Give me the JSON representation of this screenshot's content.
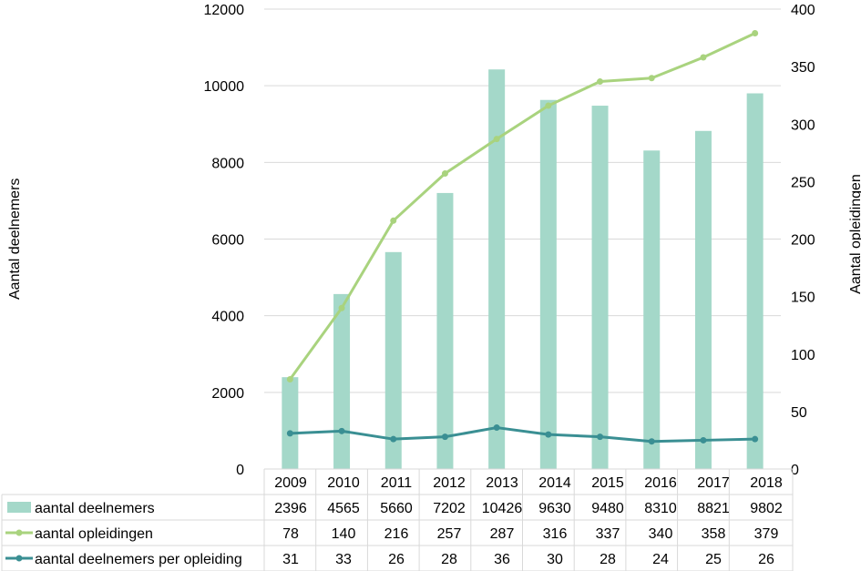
{
  "chart_data": {
    "type": "bar",
    "categories": [
      "2009",
      "2010",
      "2011",
      "2012",
      "2013",
      "2014",
      "2015",
      "2016",
      "2017",
      "2018"
    ],
    "series": [
      {
        "name": "aantal deelnemers",
        "type": "bar",
        "axis": "left",
        "color": "#a4d8c9",
        "values": [
          2396,
          4565,
          5660,
          7202,
          10426,
          9630,
          9480,
          8310,
          8821,
          9802
        ]
      },
      {
        "name": "aantal opleidingen",
        "type": "line",
        "axis": "right",
        "color": "#a9d37e",
        "values": [
          78,
          140,
          216,
          257,
          287,
          316,
          337,
          340,
          358,
          379
        ]
      },
      {
        "name": "aantal deelnemers per opleiding",
        "type": "line",
        "axis": "right",
        "color": "#3a8f93",
        "values": [
          31,
          33,
          26,
          28,
          36,
          30,
          28,
          24,
          25,
          26
        ]
      }
    ],
    "ylabel_left": "Aantal  deelnemers",
    "ylabel_right": "Aantal opleidingen",
    "ylim_left": [
      0,
      12000
    ],
    "ylim_right": [
      0,
      400
    ],
    "yticks_left": [
      "0",
      "2000",
      "4000",
      "6000",
      "8000",
      "10000",
      "12000"
    ],
    "yticks_right": [
      "0",
      "50",
      "100",
      "150",
      "200",
      "250",
      "300",
      "350",
      "400"
    ],
    "grid": true,
    "legend": "data-table below chart"
  }
}
